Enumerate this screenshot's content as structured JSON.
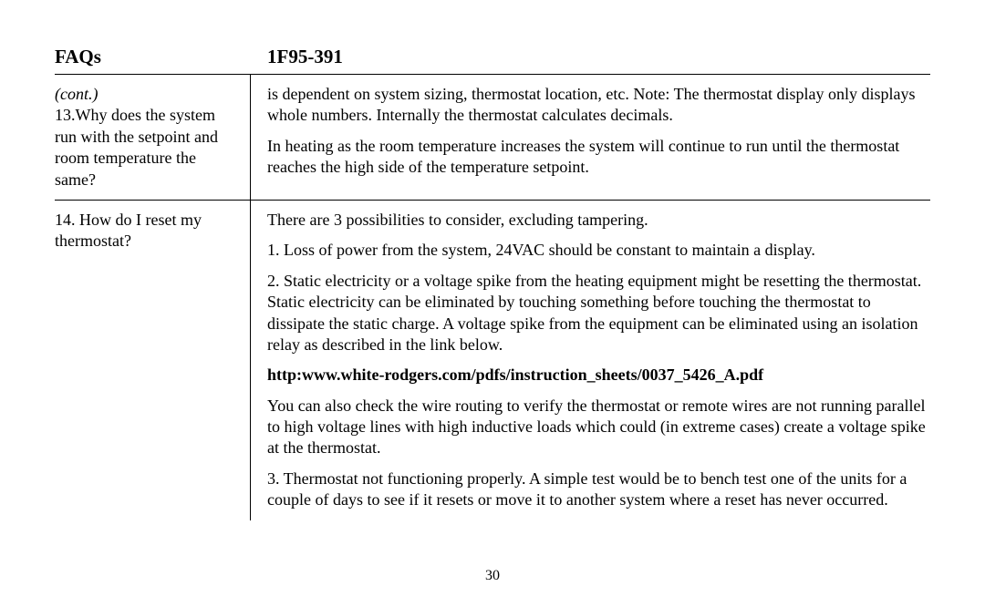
{
  "header": {
    "left": "FAQs",
    "right": "1F95-391"
  },
  "rows": [
    {
      "question": {
        "cont": "(cont.)",
        "text": "13.Why does the system run with the setpoint and room temperature the same?"
      },
      "answer": {
        "paras": [
          "is dependent on system sizing, thermostat location, etc. Note: The thermostat display only displays whole numbers. Internally the thermostat calculates decimals.",
          "In heating as the room temperature increases the system will continue to run until the thermostat reaches the high side of the temperature setpoint."
        ]
      }
    },
    {
      "question": {
        "text": "14. How do I reset my thermostat?"
      },
      "answer": {
        "paras": [
          "There are 3 possibilities to consider, excluding tampering.",
          "1. Loss of power from the system, 24VAC should be constant to maintain a display.",
          "2. Static electricity or a voltage spike from the heating equipment might be resetting the thermostat. Static electricity can be eliminated by touching something before touching the thermostat to dissipate the static charge. A voltage spike from the equipment can be eliminated using an isolation relay as described in the link below."
        ],
        "link": "http:www.white-rodgers.com/pdfs/instruction_sheets/0037_5426_A.pdf",
        "paras2": [
          "You can also check the wire routing to verify the thermostat or remote wires are not running parallel to high voltage lines with high inductive loads which could (in extreme cases) create a voltage spike at the thermostat.",
          "3. Thermostat not functioning properly. A simple test would be to bench test one of the units for a couple of days to see if it resets or move it to another system where a reset has never occurred."
        ]
      }
    }
  ],
  "page_number": "30"
}
